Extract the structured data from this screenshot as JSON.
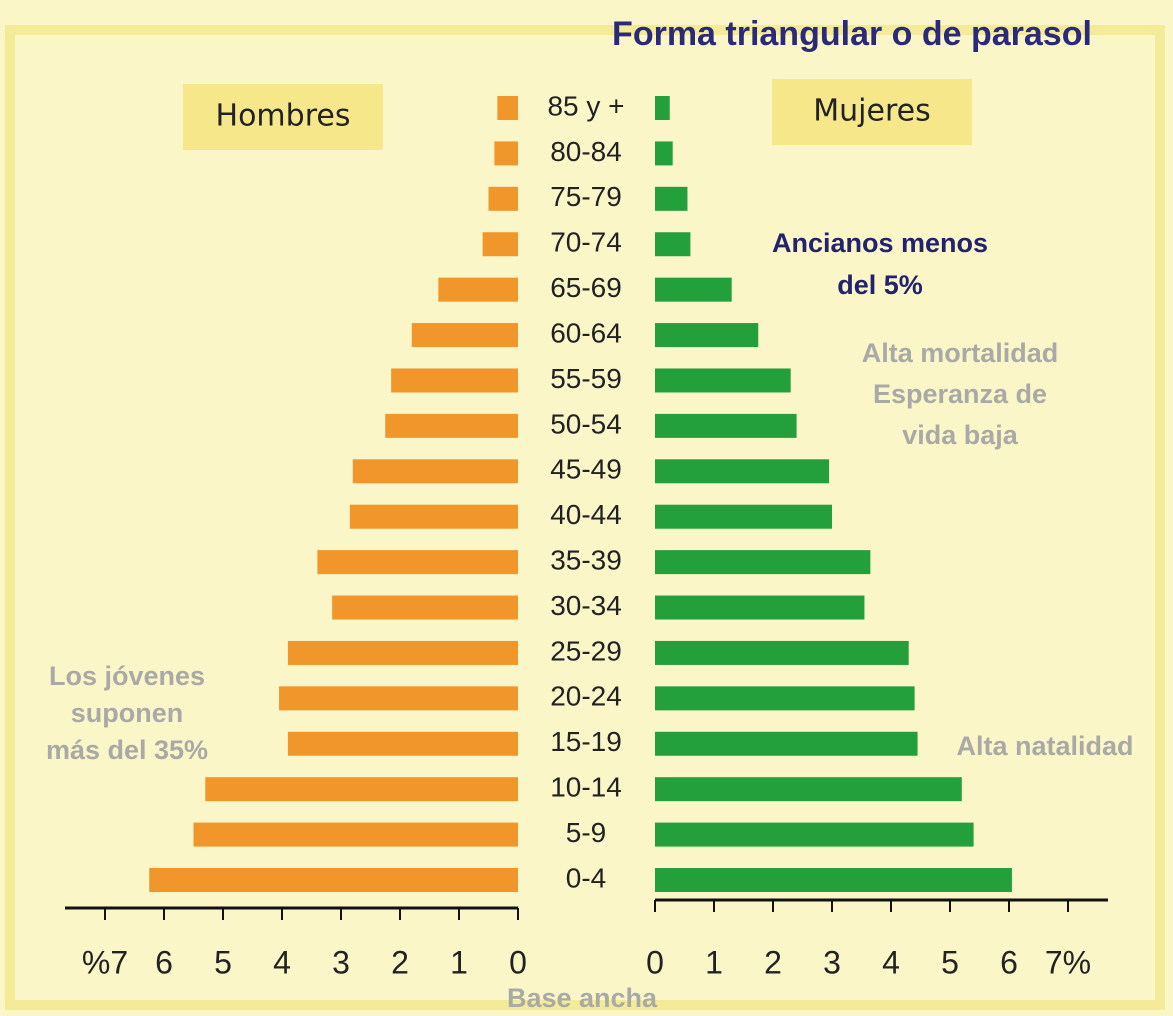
{
  "chart_data": {
    "type": "pyramid",
    "title": "Forma triangular o de parasol",
    "categories": [
      "85 y +",
      "80-84",
      "75-79",
      "70-74",
      "65-69",
      "60-64",
      "55-59",
      "50-54",
      "45-49",
      "40-44",
      "35-39",
      "30-34",
      "25-29",
      "20-24",
      "15-19",
      "10-14",
      "5-9",
      "0-4"
    ],
    "series": [
      {
        "name": "Hombres",
        "color": "#f0962a",
        "values": [
          0.35,
          0.4,
          0.5,
          0.6,
          1.35,
          1.8,
          2.15,
          2.25,
          2.8,
          2.85,
          3.4,
          3.15,
          3.9,
          4.05,
          3.9,
          5.3,
          5.5,
          6.25
        ]
      },
      {
        "name": "Mujeres",
        "color": "#23a03c",
        "values": [
          0.25,
          0.3,
          0.55,
          0.6,
          1.3,
          1.75,
          2.3,
          2.4,
          2.95,
          3.0,
          3.65,
          3.55,
          4.3,
          4.4,
          4.45,
          5.2,
          5.4,
          6.05
        ]
      }
    ],
    "axes": [
      {
        "xlim": [
          0,
          7
        ],
        "xticks": [
          0,
          1,
          2,
          3,
          4,
          5,
          6,
          {
            "value": 7,
            "label": "%7"
          }
        ]
      },
      {
        "xlim": [
          0,
          7
        ],
        "xticks": [
          0,
          1,
          2,
          3,
          4,
          5,
          6,
          {
            "value": 7,
            "label": "7%"
          }
        ]
      }
    ],
    "annotations": [
      [
        "Ancianos menos",
        "del 5%"
      ],
      [
        "Alta mortalidad",
        "Esperanza de",
        "vida baja"
      ],
      [
        "Alta natalidad"
      ],
      [
        "Los jóvenes",
        "suponen",
        "más del 35%"
      ],
      [
        "Base ancha"
      ]
    ]
  }
}
